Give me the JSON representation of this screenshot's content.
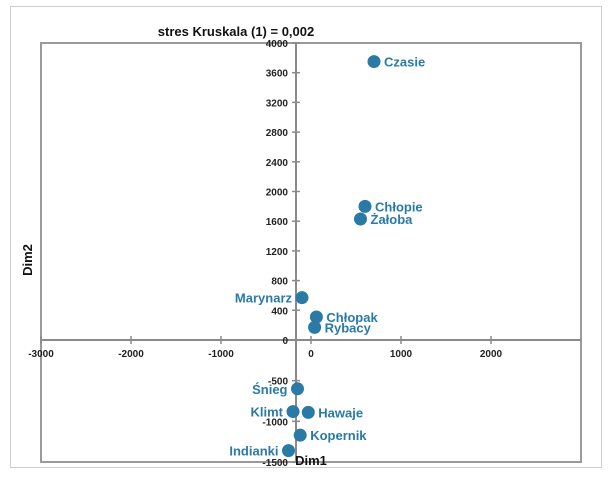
{
  "chart_data": {
    "type": "scatter",
    "title": "stres Kruskala (1) = 0,002",
    "xlabel": "Dim1",
    "ylabel": "Dim2",
    "xlim": [
      -3000,
      3000
    ],
    "ylim": [
      -1500,
      4000
    ],
    "x_ticks": [
      -3000,
      -2000,
      -1000,
      0,
      1000,
      2000
    ],
    "x_tick_labels": [
      "-3000",
      "-2000",
      "-1000",
      "0",
      "1000",
      "2000"
    ],
    "y_ticks": [
      -1500,
      -1000,
      -500,
      0,
      400,
      800,
      1200,
      1600,
      2000,
      2400,
      2800,
      3200,
      3600,
      4000
    ],
    "y_tick_labels": [
      "-1500",
      "-1000",
      "-500",
      "0",
      "400",
      "800",
      "1200",
      "1600",
      "2000",
      "2400",
      "2800",
      "3200",
      "3600",
      "4000"
    ],
    "marker_color": "#2a7aa5",
    "points": [
      {
        "label": "Czasie",
        "x": 700,
        "y": 3750,
        "anchor": "right"
      },
      {
        "label": "Chłopie",
        "x": 600,
        "y": 1800,
        "anchor": "right"
      },
      {
        "label": "Żałoba",
        "x": 550,
        "y": 1630,
        "anchor": "right"
      },
      {
        "label": "Marynarz",
        "x": -100,
        "y": 570,
        "anchor": "left"
      },
      {
        "label": "Chłopak",
        "x": 60,
        "y": 310,
        "anchor": "right"
      },
      {
        "label": "Rybacy",
        "x": 40,
        "y": 170,
        "anchor": "right"
      },
      {
        "label": "Śnieg",
        "x": -150,
        "y": -600,
        "anchor": "left"
      },
      {
        "label": "Klimt",
        "x": -200,
        "y": -880,
        "anchor": "left"
      },
      {
        "label": "Hawaje",
        "x": -30,
        "y": -890,
        "anchor": "right"
      },
      {
        "label": "Kopernik",
        "x": -120,
        "y": -1170,
        "anchor": "right"
      },
      {
        "label": "Indianki",
        "x": -250,
        "y": -1360,
        "anchor": "left"
      }
    ]
  }
}
